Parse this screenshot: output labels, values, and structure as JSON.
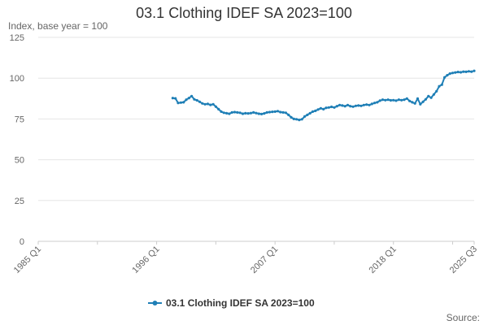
{
  "chart_data": {
    "type": "line",
    "title": "03.1 Clothing IDEF SA 2023=100",
    "ylabel": "Index, base year = 100",
    "xlabel": "",
    "ylim": [
      0,
      125
    ],
    "yticks": [
      0,
      25,
      50,
      75,
      100,
      125
    ],
    "xlim": [
      "1985 Q1",
      "2025 Q3"
    ],
    "xticks": [
      "1985 Q1",
      "1996 Q1",
      "2007 Q1",
      "2018 Q1",
      "2025 Q3"
    ],
    "grid": "horizontal",
    "legend_position": "bottom",
    "credit": "Source:",
    "series": [
      {
        "name": "03.1 Clothing IDEF SA 2023=100",
        "color": "#1f7fb6",
        "points": [
          [
            "1997 Q3",
            87.8
          ],
          [
            "1997 Q4",
            87.6
          ],
          [
            "1998 Q1",
            84.8
          ],
          [
            "1998 Q2",
            85.0
          ],
          [
            "1998 Q3",
            85.2
          ],
          [
            "1998 Q4",
            86.8
          ],
          [
            "1999 Q1",
            87.8
          ],
          [
            "1999 Q2",
            89.0
          ],
          [
            "1999 Q3",
            87.0
          ],
          [
            "1999 Q4",
            86.4
          ],
          [
            "2000 Q1",
            85.5
          ],
          [
            "2000 Q2",
            84.5
          ],
          [
            "2000 Q3",
            84.0
          ],
          [
            "2000 Q4",
            84.2
          ],
          [
            "2001 Q1",
            83.6
          ],
          [
            "2001 Q2",
            84.0
          ],
          [
            "2001 Q3",
            82.5
          ],
          [
            "2001 Q4",
            81.0
          ],
          [
            "2002 Q1",
            79.5
          ],
          [
            "2002 Q2",
            78.8
          ],
          [
            "2002 Q3",
            78.5
          ],
          [
            "2002 Q4",
            78.2
          ],
          [
            "2003 Q1",
            79.0
          ],
          [
            "2003 Q2",
            79.2
          ],
          [
            "2003 Q3",
            79.0
          ],
          [
            "2003 Q4",
            78.8
          ],
          [
            "2004 Q1",
            78.2
          ],
          [
            "2004 Q2",
            78.5
          ],
          [
            "2004 Q3",
            78.4
          ],
          [
            "2004 Q4",
            78.6
          ],
          [
            "2005 Q1",
            79.0
          ],
          [
            "2005 Q2",
            78.6
          ],
          [
            "2005 Q3",
            78.2
          ],
          [
            "2005 Q4",
            78.0
          ],
          [
            "2006 Q1",
            78.4
          ],
          [
            "2006 Q2",
            79.0
          ],
          [
            "2006 Q3",
            79.2
          ],
          [
            "2006 Q4",
            79.4
          ],
          [
            "2007 Q1",
            79.5
          ],
          [
            "2007 Q2",
            79.8
          ],
          [
            "2007 Q3",
            79.2
          ],
          [
            "2007 Q4",
            79.0
          ],
          [
            "2008 Q1",
            78.8
          ],
          [
            "2008 Q2",
            77.5
          ],
          [
            "2008 Q3",
            76.0
          ],
          [
            "2008 Q4",
            75.0
          ],
          [
            "2009 Q1",
            74.8
          ],
          [
            "2009 Q2",
            74.4
          ],
          [
            "2009 Q3",
            74.8
          ],
          [
            "2009 Q4",
            76.5
          ],
          [
            "2010 Q1",
            77.5
          ],
          [
            "2010 Q2",
            78.5
          ],
          [
            "2010 Q3",
            79.5
          ],
          [
            "2010 Q4",
            80.0
          ],
          [
            "2011 Q1",
            80.8
          ],
          [
            "2011 Q2",
            81.5
          ],
          [
            "2011 Q3",
            81.0
          ],
          [
            "2011 Q4",
            81.8
          ],
          [
            "2012 Q1",
            82.0
          ],
          [
            "2012 Q2",
            82.4
          ],
          [
            "2012 Q3",
            82.0
          ],
          [
            "2012 Q4",
            82.8
          ],
          [
            "2013 Q1",
            83.5
          ],
          [
            "2013 Q2",
            83.2
          ],
          [
            "2013 Q3",
            82.8
          ],
          [
            "2013 Q4",
            83.5
          ],
          [
            "2014 Q1",
            82.8
          ],
          [
            "2014 Q2",
            82.5
          ],
          [
            "2014 Q3",
            83.0
          ],
          [
            "2014 Q4",
            83.2
          ],
          [
            "2015 Q1",
            83.0
          ],
          [
            "2015 Q2",
            83.5
          ],
          [
            "2015 Q3",
            83.8
          ],
          [
            "2015 Q4",
            83.5
          ],
          [
            "2016 Q1",
            84.2
          ],
          [
            "2016 Q2",
            84.8
          ],
          [
            "2016 Q3",
            85.2
          ],
          [
            "2016 Q4",
            86.2
          ],
          [
            "2017 Q1",
            86.8
          ],
          [
            "2017 Q2",
            86.5
          ],
          [
            "2017 Q3",
            86.8
          ],
          [
            "2017 Q4",
            86.4
          ],
          [
            "2018 Q1",
            86.5
          ],
          [
            "2018 Q2",
            86.2
          ],
          [
            "2018 Q3",
            86.8
          ],
          [
            "2018 Q4",
            86.5
          ],
          [
            "2019 Q1",
            86.8
          ],
          [
            "2019 Q2",
            87.5
          ],
          [
            "2019 Q3",
            86.0
          ],
          [
            "2019 Q4",
            85.2
          ],
          [
            "2020 Q1",
            84.5
          ],
          [
            "2020 Q2",
            87.5
          ],
          [
            "2020 Q3",
            84.0
          ],
          [
            "2020 Q4",
            85.5
          ],
          [
            "2021 Q1",
            87.0
          ],
          [
            "2021 Q2",
            89.0
          ],
          [
            "2021 Q3",
            88.0
          ],
          [
            "2021 Q4",
            90.0
          ],
          [
            "2022 Q1",
            92.0
          ],
          [
            "2022 Q2",
            95.0
          ],
          [
            "2022 Q3",
            96.0
          ],
          [
            "2022 Q4",
            100.5
          ],
          [
            "2023 Q1",
            101.8
          ],
          [
            "2023 Q2",
            102.8
          ],
          [
            "2023 Q3",
            103.2
          ],
          [
            "2023 Q4",
            103.5
          ],
          [
            "2024 Q1",
            103.8
          ],
          [
            "2024 Q2",
            103.6
          ],
          [
            "2024 Q3",
            104.0
          ],
          [
            "2024 Q4",
            103.9
          ],
          [
            "2025 Q1",
            104.2
          ],
          [
            "2025 Q2",
            104.0
          ],
          [
            "2025 Q3",
            104.5
          ]
        ]
      }
    ]
  }
}
